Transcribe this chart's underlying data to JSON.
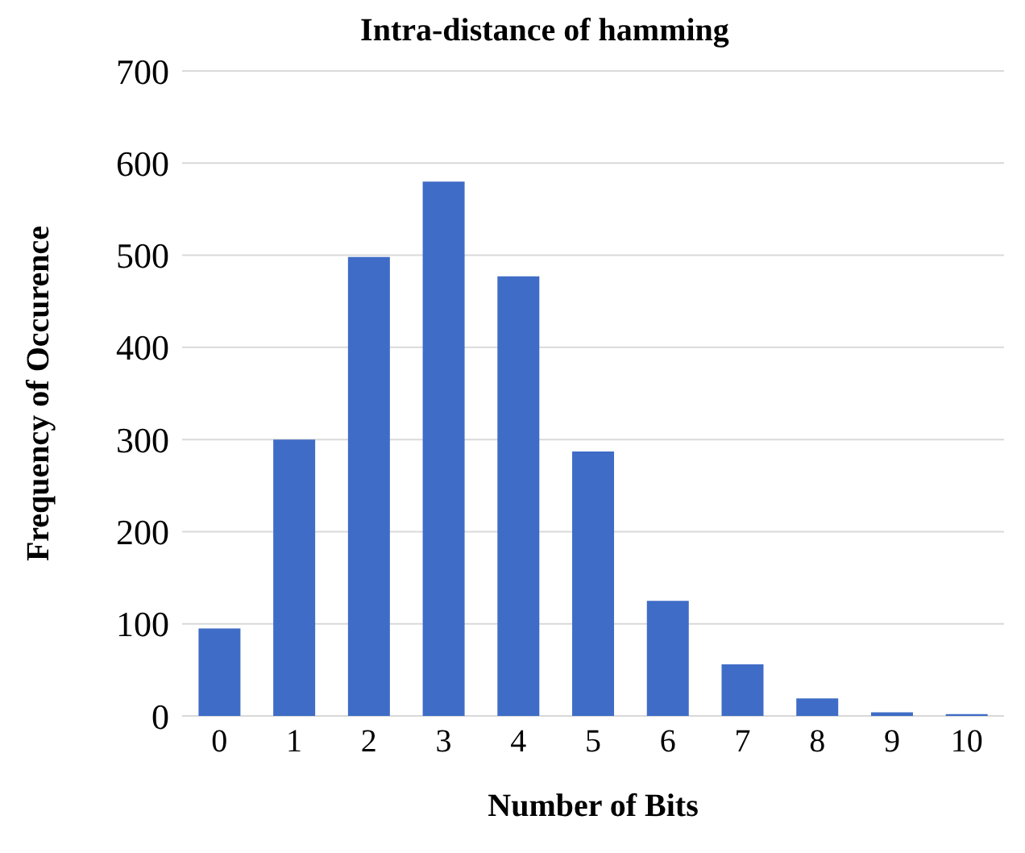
{
  "chart_data": {
    "type": "bar",
    "title": "Intra-distance of hamming",
    "xlabel": "Number of Bits",
    "ylabel": "Frequency of Occurence",
    "categories": [
      "0",
      "1",
      "2",
      "3",
      "4",
      "5",
      "6",
      "7",
      "8",
      "9",
      "10"
    ],
    "values": [
      95,
      300,
      498,
      580,
      477,
      287,
      125,
      56,
      19,
      4,
      2
    ],
    "color": "#3f6cc6",
    "ylim": [
      0,
      700
    ],
    "yticks": [
      0,
      100,
      200,
      300,
      400,
      500,
      600,
      700
    ],
    "grid": "y"
  }
}
